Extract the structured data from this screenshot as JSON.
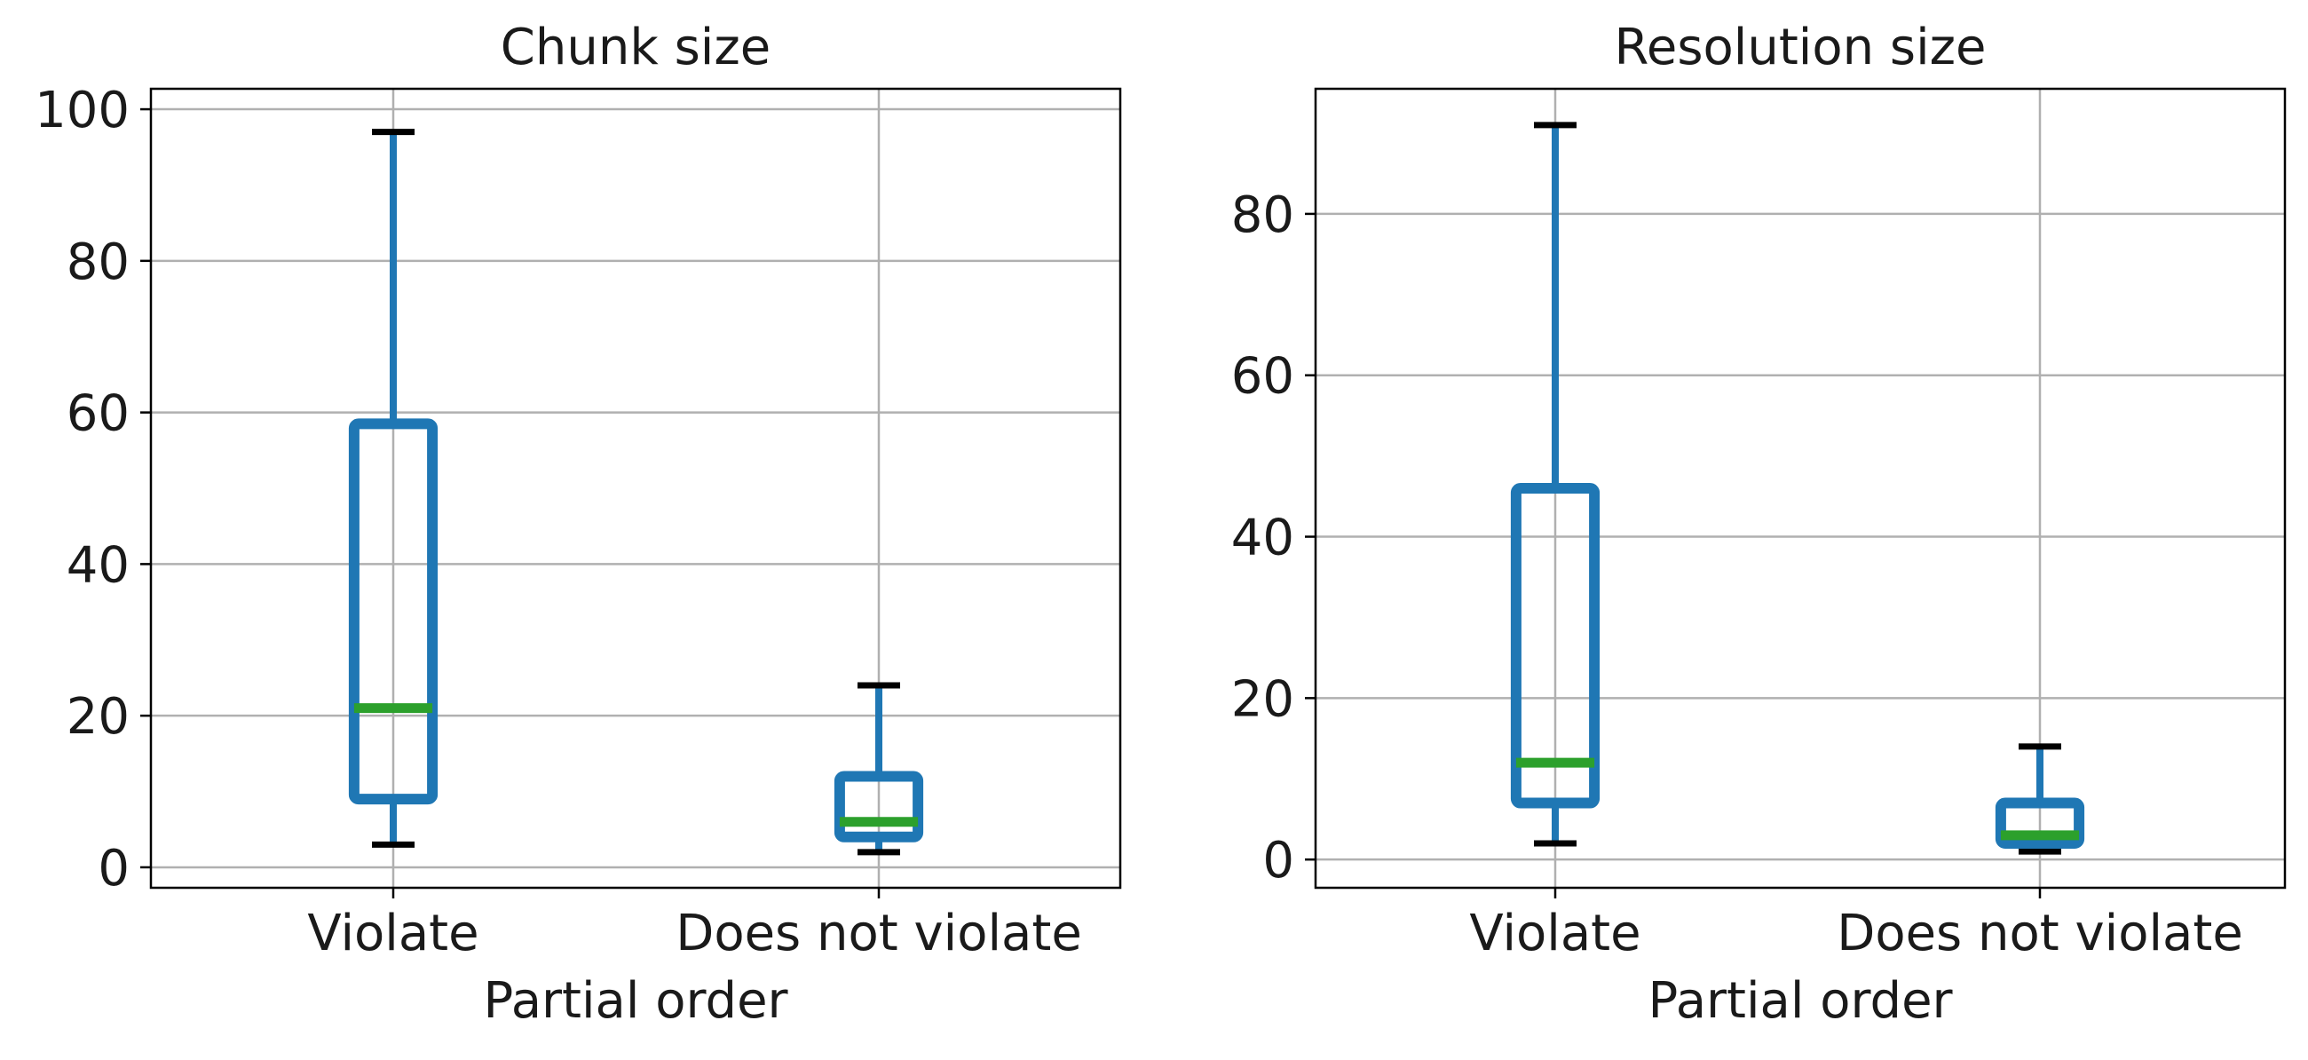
{
  "chart_data": [
    {
      "type": "box",
      "title": "Chunk size",
      "xlabel": "Partial order",
      "ylabel": "",
      "categories": [
        "Violate",
        "Does not violate"
      ],
      "boxes": [
        {
          "category": "Violate",
          "whisker_low": 3,
          "q1": 9,
          "median": 21,
          "q3": 58.5,
          "whisker_high": 97
        },
        {
          "category": "Does not violate",
          "whisker_low": 2,
          "q1": 4,
          "median": 6,
          "q3": 12,
          "whisker_high": 24
        }
      ],
      "ylim": [
        -2.7,
        102.7
      ],
      "yticks": [
        0,
        20,
        40,
        60,
        80,
        100
      ],
      "grid": true
    },
    {
      "type": "box",
      "title": "Resolution size",
      "xlabel": "Partial order",
      "ylabel": "",
      "categories": [
        "Violate",
        "Does not violate"
      ],
      "boxes": [
        {
          "category": "Violate",
          "whisker_low": 2,
          "q1": 7,
          "median": 12,
          "q3": 46,
          "whisker_high": 91
        },
        {
          "category": "Does not violate",
          "whisker_low": 1,
          "q1": 2,
          "median": 3,
          "q3": 7,
          "whisker_high": 14
        }
      ],
      "ylim": [
        -3.5,
        95.5
      ],
      "yticks": [
        0,
        20,
        40,
        60,
        80
      ],
      "grid": true
    }
  ],
  "colors": {
    "box": "#1f77b4",
    "median": "#2ca02c",
    "cap": "#000000",
    "grid": "#b0b0b0",
    "axis": "#000000"
  }
}
